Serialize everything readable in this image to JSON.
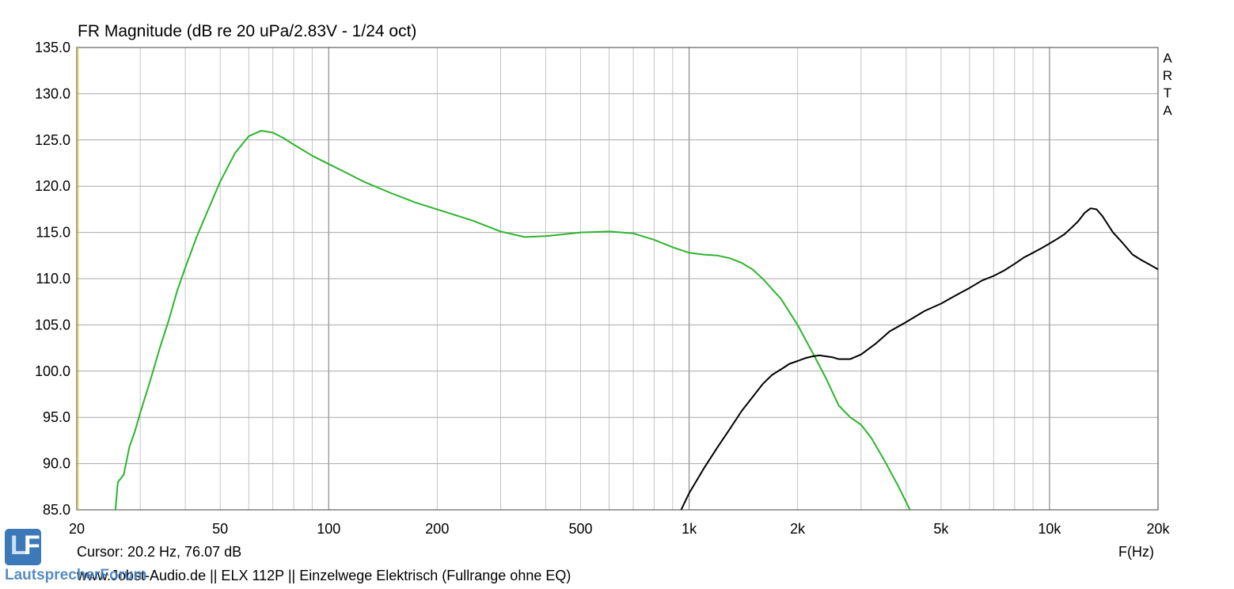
{
  "chart_data": {
    "type": "line",
    "title": "FR Magnitude (dB re 20 uPa/2.83V - 1/24 oct)",
    "xlabel": "F(Hz)",
    "ylabel": "",
    "x_scale": "log",
    "xlim": [
      20,
      20000
    ],
    "ylim": [
      85,
      135
    ],
    "grid": true,
    "x_ticks": [
      {
        "value": 20,
        "label": "20"
      },
      {
        "value": 50,
        "label": "50"
      },
      {
        "value": 100,
        "label": "100"
      },
      {
        "value": 200,
        "label": "200"
      },
      {
        "value": 500,
        "label": "500"
      },
      {
        "value": 1000,
        "label": "1k"
      },
      {
        "value": 2000,
        "label": "2k"
      },
      {
        "value": 5000,
        "label": "5k"
      },
      {
        "value": 10000,
        "label": "10k"
      },
      {
        "value": 20000,
        "label": "20k"
      }
    ],
    "y_ticks": [
      {
        "value": 85,
        "label": "85.0"
      },
      {
        "value": 90,
        "label": "90.0"
      },
      {
        "value": 95,
        "label": "95.0"
      },
      {
        "value": 100,
        "label": "100.0"
      },
      {
        "value": 105,
        "label": "105.0"
      },
      {
        "value": 110,
        "label": "110.0"
      },
      {
        "value": 115,
        "label": "115.0"
      },
      {
        "value": 120,
        "label": "120.0"
      },
      {
        "value": 125,
        "label": "125.0"
      },
      {
        "value": 130,
        "label": "130.0"
      },
      {
        "value": 135,
        "label": "135.0"
      }
    ],
    "series": [
      {
        "color": "#2cb52c",
        "x": [
          25.6,
          26,
          27,
          28,
          29,
          30,
          32,
          34,
          36,
          38,
          40,
          43,
          46,
          50,
          55,
          60,
          65,
          70,
          75,
          80,
          90,
          100,
          110,
          125,
          150,
          175,
          200,
          250,
          300,
          350,
          400,
          450,
          500,
          600,
          700,
          800,
          900,
          1000,
          1100,
          1200,
          1300,
          1400,
          1500,
          1600,
          1800,
          2000,
          2200,
          2400,
          2600,
          2800,
          3000,
          3200,
          3500,
          3800,
          4100
        ],
        "y": [
          85,
          88,
          88.8,
          91.8,
          93.5,
          95.5,
          99,
          102.5,
          105.5,
          108.7,
          111.2,
          114.5,
          117.2,
          120.5,
          123.6,
          125.4,
          126,
          125.8,
          125.2,
          124.5,
          123.3,
          122.4,
          121.6,
          120.5,
          119.2,
          118.2,
          117.5,
          116.3,
          115.1,
          114.5,
          114.6,
          114.8,
          115,
          115.1,
          114.9,
          114.2,
          113.4,
          112.8,
          112.6,
          112.5,
          112.2,
          111.7,
          111,
          110,
          107.8,
          105,
          102,
          99.2,
          96.3,
          95,
          94.2,
          92.8,
          90.2,
          87.6,
          85
        ]
      },
      {
        "color": "#000000",
        "x": [
          950,
          1000,
          1100,
          1200,
          1300,
          1400,
          1500,
          1600,
          1700,
          1800,
          1900,
          2000,
          2100,
          2200,
          2300,
          2400,
          2500,
          2600,
          2800,
          3000,
          3300,
          3600,
          4000,
          4500,
          5000,
          5500,
          6000,
          6500,
          7000,
          7500,
          8000,
          8500,
          9000,
          9500,
          10000,
          10500,
          11000,
          11500,
          12000,
          12500,
          13000,
          13500,
          14000,
          15000,
          16000,
          17000,
          18000,
          19000,
          20000
        ],
        "y": [
          85,
          86.8,
          89.5,
          91.8,
          93.8,
          95.7,
          97.2,
          98.6,
          99.6,
          100.2,
          100.8,
          101.1,
          101.4,
          101.6,
          101.7,
          101.6,
          101.5,
          101.3,
          101.3,
          101.8,
          103,
          104.3,
          105.3,
          106.5,
          107.3,
          108.2,
          109,
          109.8,
          110.3,
          110.9,
          111.6,
          112.3,
          112.8,
          113.3,
          113.8,
          114.3,
          114.8,
          115.5,
          116.2,
          117.1,
          117.6,
          117.5,
          116.8,
          115,
          113.8,
          112.6,
          112,
          111.5,
          111
        ]
      }
    ]
  },
  "cursor_text": "Cursor: 20.2 Hz, 76.07 dB",
  "footer_text": "www.Jobst-Audio.de  ||  ELX 112P  ||  Einzelwege Elektrisch (Fullrange ohne EQ)",
  "watermark_right": [
    "A",
    "R",
    "T",
    "A"
  ],
  "logo": {
    "letters_1": "L",
    "letters_2": "F",
    "text": "LautsprecherForum"
  }
}
